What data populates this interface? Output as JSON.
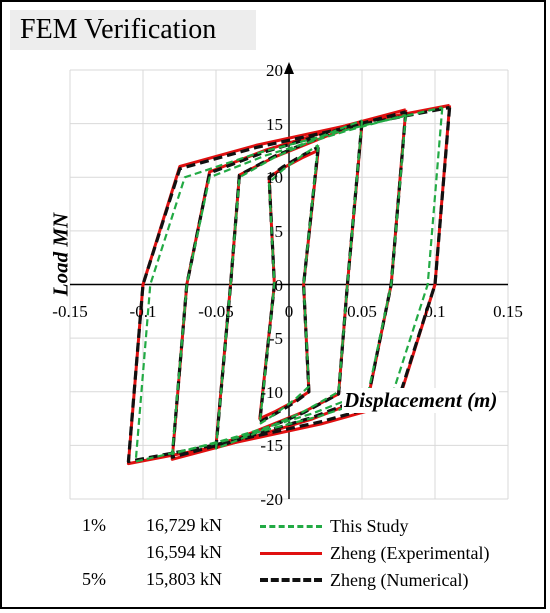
{
  "chart_data": {
    "type": "line",
    "title": "FEM Verification",
    "xlabel": "Displacement (m)",
    "ylabel": "Load MN",
    "xlim": [
      -0.15,
      0.15
    ],
    "ylim": [
      -20,
      20
    ],
    "x_ticks": [
      "-0.15",
      "-0.1",
      "-0.05",
      "0",
      "0.05",
      "0.1",
      "0.15"
    ],
    "y_ticks": [
      "-20",
      "-15",
      "-10",
      "-5",
      "0",
      "5",
      "10",
      "15",
      "20"
    ],
    "grid": true,
    "colors": {
      "this_study": "#22aa44",
      "experimental": "#e01010",
      "numerical": "#111111"
    },
    "series": [
      {
        "name": "This Study",
        "loops": [
          {
            "amp": 0.02,
            "peak": 13.0,
            "knee": 9.5
          },
          {
            "amp": 0.05,
            "peak": 15.3,
            "knee": 10.0
          },
          {
            "amp": 0.08,
            "peak": 15.8,
            "knee": 10.0
          },
          {
            "amp": 0.105,
            "peak": 16.5,
            "knee": 10.0
          }
        ]
      },
      {
        "name": "Zheng (Experimental)",
        "loops": [
          {
            "amp": 0.02,
            "peak": 12.5,
            "knee": 10.0
          },
          {
            "amp": 0.05,
            "peak": 15.0,
            "knee": 10.2
          },
          {
            "amp": 0.08,
            "peak": 16.3,
            "knee": 10.5
          },
          {
            "amp": 0.11,
            "peak": 16.7,
            "knee": 11.0
          }
        ]
      },
      {
        "name": "Zheng (Numerical)",
        "loops": [
          {
            "amp": 0.02,
            "peak": 12.8,
            "knee": 10.0
          },
          {
            "amp": 0.05,
            "peak": 15.2,
            "knee": 10.2
          },
          {
            "amp": 0.08,
            "peak": 16.1,
            "knee": 10.4
          },
          {
            "amp": 0.11,
            "peak": 16.5,
            "knee": 10.8
          }
        ]
      }
    ],
    "annotations": [
      {
        "label": "1%",
        "value": "16,729 kN"
      },
      {
        "label": "",
        "value": "16,594 kN"
      },
      {
        "label": "5%",
        "value": "15,803 kN"
      }
    ]
  }
}
